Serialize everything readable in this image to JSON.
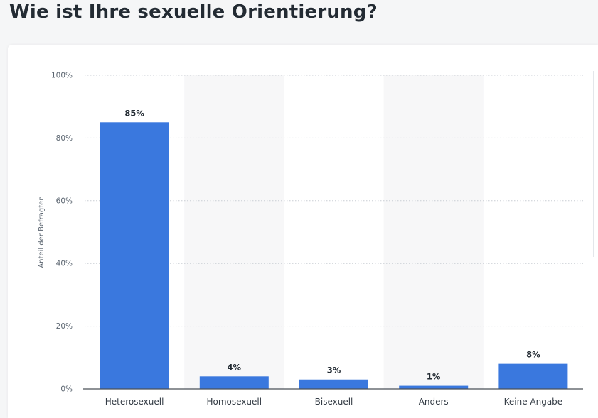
{
  "page": {
    "title": "Wie ist Ihre sexuelle Orientierung?"
  },
  "chart_data": {
    "type": "bar",
    "title": "",
    "xlabel": "",
    "ylabel": "Anteil der Befragten",
    "categories": [
      "Heterosexuell",
      "Homosexuell",
      "Bisexuell",
      "Anders",
      "Keine Angabe"
    ],
    "values": [
      85,
      4,
      3,
      1,
      8
    ],
    "value_labels": [
      "85%",
      "4%",
      "3%",
      "1%",
      "8%"
    ],
    "ylim": [
      0,
      100
    ],
    "y_ticks": [
      0,
      20,
      40,
      60,
      80,
      100
    ],
    "y_tick_labels": [
      "0%",
      "20%",
      "40%",
      "60%",
      "80%",
      "100%"
    ],
    "grid": true,
    "bar_color": "#3a78de",
    "band_color": "#f7f7f8",
    "legend": "none"
  }
}
